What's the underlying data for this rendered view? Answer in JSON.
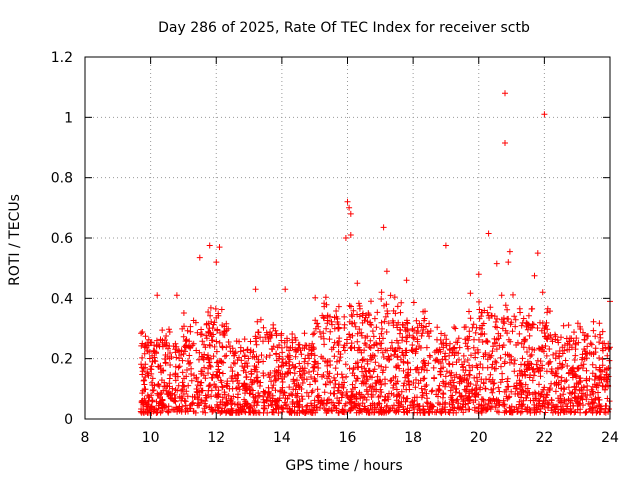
{
  "chart_data": {
    "type": "scatter",
    "title": "Day 286 of 2025, Rate Of TEC Index for receiver sctb",
    "xlabel": "GPS time / hours",
    "ylabel": "ROTI / TECUs",
    "xlim": [
      8,
      24
    ],
    "ylim": [
      0,
      1.2
    ],
    "grid": true,
    "marker": "+",
    "x_ticks": [
      "8",
      "10",
      "12",
      "14",
      "16",
      "18",
      "20",
      "22",
      "24"
    ],
    "y_ticks": [
      "0",
      "0.2",
      "0.4",
      "0.6",
      "0.8",
      "1",
      "1.2"
    ],
    "x_tick_values": [
      8,
      10,
      12,
      14,
      16,
      18,
      20,
      22,
      24
    ],
    "y_tick_values": [
      0,
      0.2,
      0.4,
      0.6,
      0.8,
      1.0,
      1.2
    ],
    "series": [
      {
        "name": "ROTI",
        "color": "#ff0000",
        "data_range": {
          "x_start": 9.7,
          "x_end": 24.0,
          "typical_y": [
            0.02,
            0.3
          ]
        },
        "notable_points": [
          [
            20.8,
            1.08
          ],
          [
            22.0,
            1.01
          ],
          [
            20.8,
            0.915
          ],
          [
            16.0,
            0.72
          ],
          [
            16.05,
            0.7
          ],
          [
            16.1,
            0.68
          ],
          [
            17.1,
            0.635
          ],
          [
            20.3,
            0.615
          ],
          [
            16.1,
            0.61
          ],
          [
            15.95,
            0.6
          ],
          [
            11.8,
            0.575
          ],
          [
            19.0,
            0.575
          ],
          [
            12.1,
            0.57
          ],
          [
            11.5,
            0.535
          ],
          [
            20.95,
            0.555
          ],
          [
            21.8,
            0.55
          ],
          [
            12.0,
            0.52
          ],
          [
            20.9,
            0.52
          ],
          [
            20.55,
            0.515
          ],
          [
            17.2,
            0.49
          ],
          [
            20.0,
            0.48
          ],
          [
            21.7,
            0.475
          ],
          [
            16.3,
            0.45
          ],
          [
            13.2,
            0.43
          ],
          [
            14.1,
            0.43
          ],
          [
            10.8,
            0.41
          ],
          [
            10.2,
            0.41
          ],
          [
            21.95,
            0.42
          ],
          [
            24.0,
            0.39
          ],
          [
            20.7,
            0.41
          ],
          [
            17.8,
            0.46
          ]
        ]
      }
    ]
  }
}
